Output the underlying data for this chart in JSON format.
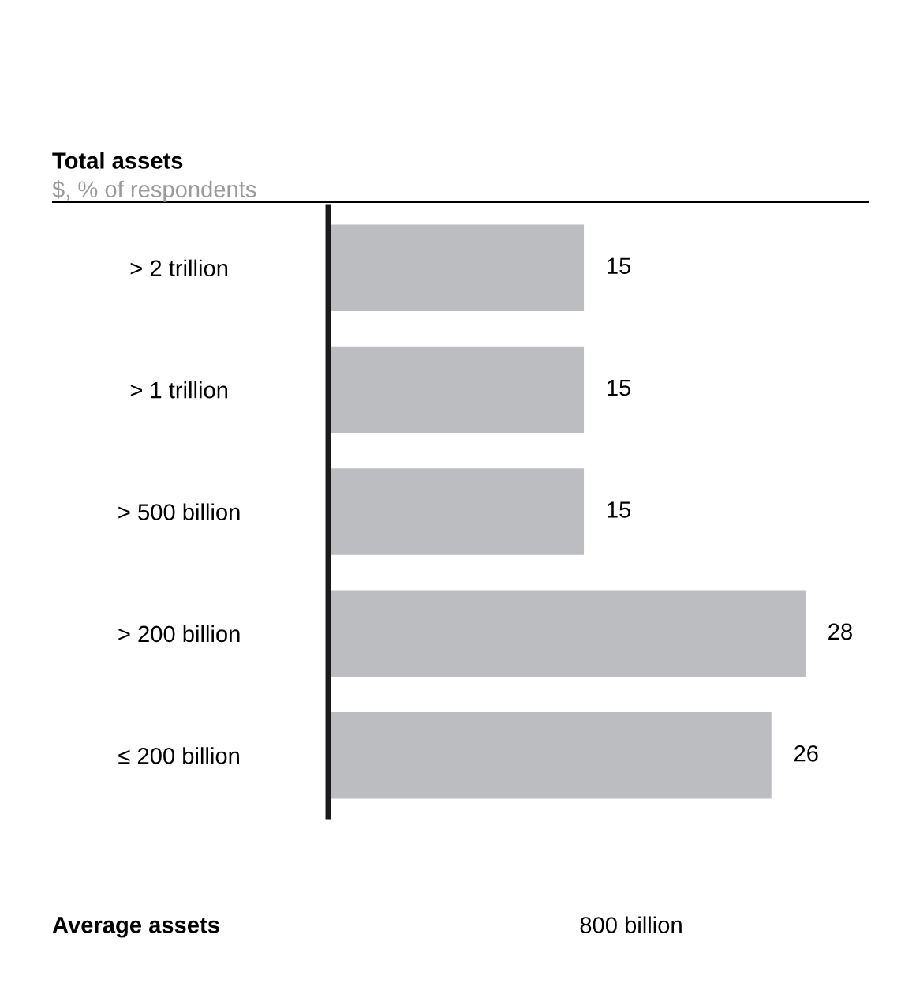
{
  "chart_data": {
    "type": "bar",
    "orientation": "horizontal",
    "title": "Total assets",
    "subtitle": "$, % of respondents",
    "categories": [
      "> 2 trillion",
      "> 1 trillion",
      "> 500 billion",
      "> 200 billion",
      "≤ 200 billion"
    ],
    "values": [
      15,
      15,
      15,
      28,
      26
    ],
    "color": "#bcbdc0",
    "data_labels": true,
    "grid": false,
    "legend": false,
    "annotations": [
      "Average assets",
      "800 billion"
    ]
  }
}
